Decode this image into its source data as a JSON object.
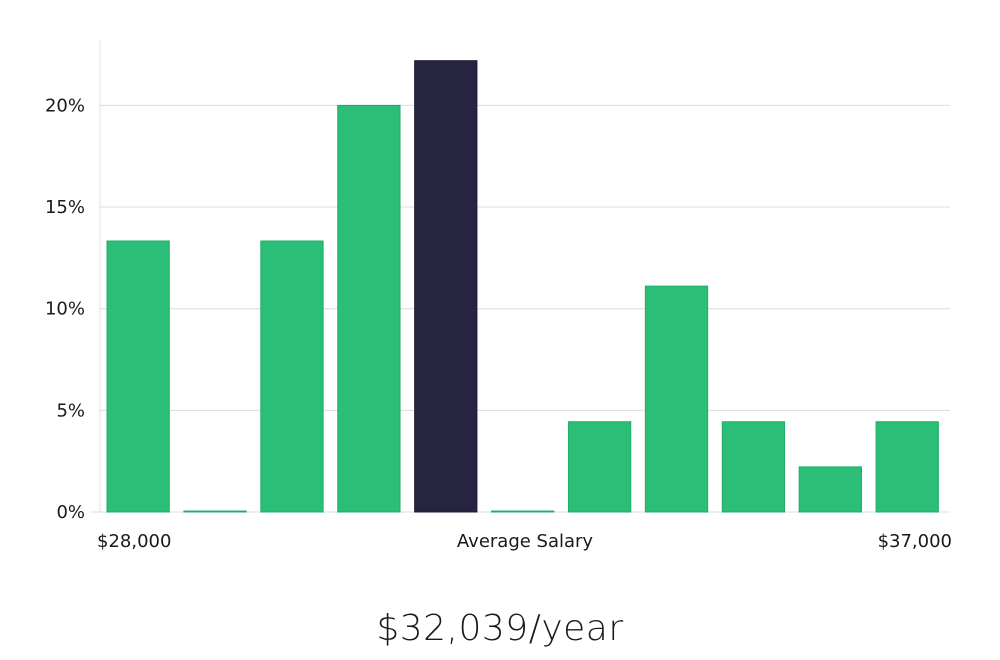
{
  "chart_data": {
    "type": "bar",
    "title": "",
    "xlabel": "Average Salary",
    "ylabel": "",
    "x_min_label": "$28,000",
    "x_max_label": "$37,000",
    "values": [
      13.33,
      0,
      13.33,
      20,
      22.2,
      0,
      4.44,
      11.11,
      4.44,
      2.22,
      4.44
    ],
    "highlight_index": 4,
    "ylim": [
      0,
      23
    ],
    "yticks": [
      0,
      5,
      10,
      15,
      20
    ],
    "ytick_labels": [
      "0%",
      "5%",
      "10%",
      "15%",
      "20%"
    ],
    "grid": true
  },
  "colors": {
    "bar": "#2abe76",
    "bar_stroke": "#22ad69",
    "highlight": "#272442",
    "grid": "#dcdcdc",
    "axis": "#e2e2e2"
  },
  "caption": "$32,039/year"
}
